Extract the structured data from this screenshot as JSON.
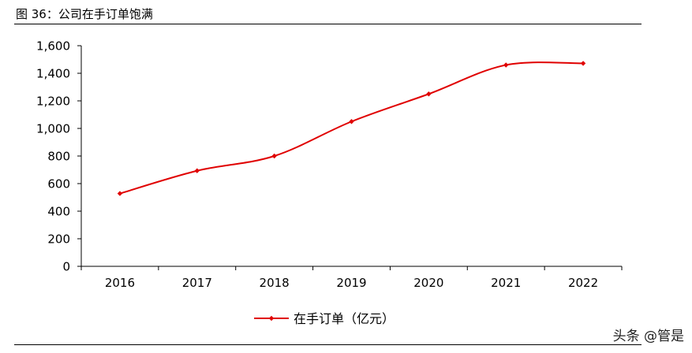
{
  "figure": {
    "title": "图 36：公司在手订单饱满",
    "watermark": "头条 @管是"
  },
  "chart_data": {
    "type": "line",
    "categories": [
      "2016",
      "2017",
      "2018",
      "2019",
      "2020",
      "2021",
      "2022"
    ],
    "series": [
      {
        "name": "在手订单（亿元）",
        "values": [
          528,
          693,
          800,
          1050,
          1250,
          1460,
          1472
        ],
        "color": "#e00000"
      }
    ],
    "yticks": [
      "0",
      "200",
      "400",
      "600",
      "800",
      "1,000",
      "1,200",
      "1,400",
      "1,600"
    ],
    "ylim": [
      0,
      1600
    ],
    "smooth": true,
    "grid": false,
    "legend": "bottom-center",
    "xlabel": "",
    "ylabel": ""
  }
}
